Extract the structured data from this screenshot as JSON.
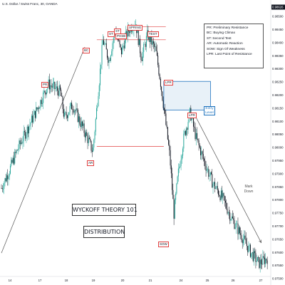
{
  "header": {
    "instrument": "U.S. Dollar / Swiss Franc, 30, OANDA"
  },
  "legend": [
    "PR: Preliminary Resistance",
    "BC: Buying Climax",
    "ST: Second Test",
    "AR: Automatic Reaction",
    "SOW: Sign Of Weakness",
    "LPR: Last Point of Resistance"
  ],
  "title": "WYCKOFF THEORY 101",
  "subtitle": "DISTRIBUTION",
  "events": [
    {
      "label": "PR",
      "date": 17.2,
      "price": 0.9826
    },
    {
      "label": "AR",
      "date": 19.0,
      "price": 0.97985
    },
    {
      "label": "BC",
      "date": 19.0,
      "price": 0.984
    },
    {
      "label": "ST",
      "date": 19.9,
      "price": 0.98455
    },
    {
      "label": "ST",
      "date": 20.25,
      "price": 0.98465
    },
    {
      "label": "PHSB",
      "date": 20.4,
      "price": 0.9846
    },
    {
      "label": "SPRING",
      "date": 20.9,
      "price": 0.98475
    },
    {
      "label": "TEST",
      "date": 21.8,
      "price": 0.98455
    },
    {
      "label": "LPR",
      "date": 22.2,
      "price": 0.98265
    },
    {
      "label": "LPR",
      "date": 22.8,
      "price": 0.9815
    },
    {
      "label": "SOW",
      "date": 22.8,
      "price": 0.9772
    }
  ],
  "zone": {
    "label": "Entry Level"
  },
  "mark_down": "Mark Down",
  "chart_data": {
    "type": "line",
    "title": "",
    "xlabel": "",
    "ylabel": "",
    "x_ticks": [
      "14",
      "17",
      "18",
      "19",
      "20",
      "21",
      "24",
      "25",
      "26",
      "27"
    ],
    "y_ticks": [
      "0.98500",
      "0.98450",
      "0.98400",
      "0.98350",
      "0.98300",
      "0.98250",
      "0.98200",
      "0.98150",
      "0.98100",
      "0.98050",
      "0.98000",
      "0.97950",
      "0.97900",
      "0.97850",
      "0.97800",
      "0.97750",
      "0.97700",
      "0.97650",
      "0.97600",
      "0.97550",
      "0.97500"
    ],
    "current_price": "0.98626",
    "xlim": [
      14.3,
      27.5
    ],
    "ylim": [
      0.9749,
      0.9852
    ],
    "grid": false,
    "series": [
      {
        "values": [
          {
            "x": 14.3,
            "y": 0.9783
          },
          {
            "x": 14.7,
            "y": 0.979
          },
          {
            "x": 15.1,
            "y": 0.9798
          },
          {
            "x": 15.6,
            "y": 0.9806
          },
          {
            "x": 16.1,
            "y": 0.9814
          },
          {
            "x": 16.6,
            "y": 0.9823
          },
          {
            "x": 17.2,
            "y": 0.982
          },
          {
            "x": 17.4,
            "y": 0.981
          },
          {
            "x": 17.8,
            "y": 0.9815
          },
          {
            "x": 18.2,
            "y": 0.9808
          },
          {
            "x": 18.6,
            "y": 0.9801
          },
          {
            "x": 18.8,
            "y": 0.9797
          },
          {
            "x": 19.0,
            "y": 0.9814
          },
          {
            "x": 19.3,
            "y": 0.984
          },
          {
            "x": 19.6,
            "y": 0.9832
          },
          {
            "x": 19.9,
            "y": 0.9844
          },
          {
            "x": 20.2,
            "y": 0.9835
          },
          {
            "x": 20.5,
            "y": 0.9843
          },
          {
            "x": 20.9,
            "y": 0.9847
          },
          {
            "x": 21.2,
            "y": 0.9833
          },
          {
            "x": 21.5,
            "y": 0.9842
          },
          {
            "x": 21.9,
            "y": 0.9836
          },
          {
            "x": 22.1,
            "y": 0.9826
          },
          {
            "x": 22.3,
            "y": 0.9814
          },
          {
            "x": 22.6,
            "y": 0.9795
          },
          {
            "x": 22.8,
            "y": 0.9773
          },
          {
            "x": 23.0,
            "y": 0.9788
          },
          {
            "x": 23.3,
            "y": 0.9803
          },
          {
            "x": 23.6,
            "y": 0.9812
          },
          {
            "x": 23.9,
            "y": 0.9802
          },
          {
            "x": 24.3,
            "y": 0.9793
          },
          {
            "x": 24.7,
            "y": 0.9785
          },
          {
            "x": 25.2,
            "y": 0.9779
          },
          {
            "x": 25.6,
            "y": 0.9772
          },
          {
            "x": 26.1,
            "y": 0.9765
          },
          {
            "x": 26.6,
            "y": 0.9758
          },
          {
            "x": 27.0,
            "y": 0.9754
          },
          {
            "x": 27.4,
            "y": 0.9756
          }
        ]
      }
    ],
    "levels": [
      {
        "y": 0.9845,
        "x0": 20.7,
        "x1": 22.4,
        "color": "#e04040"
      },
      {
        "y": 0.984,
        "x0": 19.0,
        "x1": 22.4,
        "color": "#e04040"
      },
      {
        "y": 0.9799,
        "x0": 19.0,
        "x1": 22.3,
        "color": "#e04040"
      }
    ],
    "entry_zone": {
      "x0": 22.3,
      "x1": 24.6,
      "y0": 0.9824,
      "y1": 0.9813
    },
    "trend_lines": [
      {
        "x0": 14.3,
        "y0": 0.9758,
        "x1": 18.4,
        "y1": 0.9837
      },
      {
        "x0": 23.9,
        "y0": 0.981,
        "x1": 27.1,
        "y1": 0.9762
      }
    ],
    "colors": {
      "up": "#26a69a",
      "down": "#131722",
      "level": "#e04040",
      "zone": "#1e73be"
    }
  }
}
